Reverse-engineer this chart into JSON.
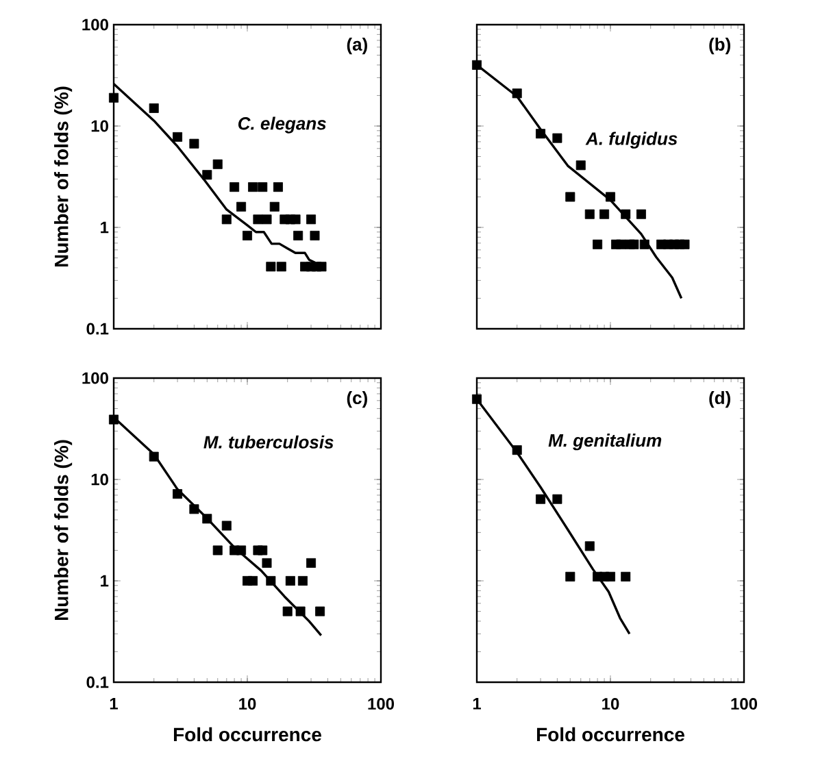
{
  "chart_data": [
    {
      "type": "scatter",
      "log": "xy",
      "ylabel": "Number of folds (%)",
      "annotations": [
        "(a)",
        "C. elegans"
      ],
      "xlim": [
        1,
        100
      ],
      "ylim": [
        0.1,
        100
      ],
      "xticks": [
        1,
        10,
        100
      ],
      "yticks": [
        0.1,
        1,
        10,
        100
      ],
      "tick_labels": "y",
      "series": [
        {
          "marker": "square",
          "color": "#000000",
          "x": [
            1,
            2,
            3,
            4,
            5,
            6,
            7,
            8,
            9,
            10,
            11,
            12,
            13,
            14,
            15,
            16,
            17,
            18,
            19,
            21,
            23,
            24,
            30,
            32,
            27,
            30,
            33,
            36
          ],
          "values": [
            19,
            15,
            7.8,
            6.7,
            3.3,
            4.2,
            1.2,
            2.5,
            1.6,
            0.83,
            2.5,
            1.2,
            2.5,
            1.2,
            0.41,
            1.6,
            2.5,
            0.41,
            1.2,
            1.2,
            1.2,
            0.83,
            1.2,
            0.83,
            0.41,
            0.41,
            0.41,
            0.41
          ]
        },
        {
          "type": "line",
          "marker": "none",
          "color": "#000000",
          "x": [
            1,
            2,
            3,
            4.8,
            7,
            10,
            11.6,
            13.3,
            15.2,
            17.4,
            20,
            22.9,
            27,
            29,
            32,
            35.5
          ],
          "values": [
            26,
            11.3,
            6.3,
            2.9,
            1.5,
            1.05,
            0.9,
            0.9,
            0.69,
            0.69,
            0.62,
            0.56,
            0.56,
            0.48,
            0.45,
            0.41
          ]
        }
      ]
    },
    {
      "type": "scatter",
      "log": "xy",
      "annotations": [
        "(b)",
        "A. fulgidus"
      ],
      "xlim": [
        1,
        100
      ],
      "ylim": [
        0.1,
        100
      ],
      "xticks": [
        1,
        10,
        100
      ],
      "yticks": [
        0.1,
        1,
        10,
        100
      ],
      "tick_labels": false,
      "series": [
        {
          "marker": "square",
          "color": "#000000",
          "x": [
            1,
            2,
            3,
            4,
            5,
            6,
            7,
            8,
            9,
            10,
            11,
            12,
            13,
            14,
            15,
            17,
            18,
            24,
            27,
            30,
            33,
            36
          ],
          "values": [
            40,
            21,
            8.4,
            7.6,
            2.0,
            4.1,
            1.35,
            0.68,
            1.35,
            2.0,
            0.68,
            0.68,
            1.35,
            0.68,
            0.68,
            1.35,
            0.68,
            0.68,
            0.68,
            0.68,
            0.68,
            0.68
          ]
        },
        {
          "type": "line",
          "marker": "none",
          "color": "#000000",
          "x": [
            1,
            2,
            3,
            4.8,
            10,
            17,
            22,
            29,
            34
          ],
          "values": [
            40,
            19.6,
            9.3,
            4.05,
            1.86,
            0.86,
            0.51,
            0.32,
            0.2
          ]
        }
      ]
    },
    {
      "type": "scatter",
      "log": "xy",
      "xlabel": "Fold occurrence",
      "ylabel": "Number of folds (%)",
      "annotations": [
        "(c)",
        "M. tuberculosis"
      ],
      "xlim": [
        1,
        100
      ],
      "ylim": [
        0.1,
        100
      ],
      "xticks": [
        1,
        10,
        100
      ],
      "yticks": [
        0.1,
        1,
        10,
        100
      ],
      "series": [
        {
          "marker": "square",
          "color": "#000000",
          "x": [
            1,
            2,
            3,
            4,
            5,
            6,
            7,
            8,
            9,
            10,
            11,
            12,
            13,
            14,
            15,
            20,
            21,
            25,
            26,
            30,
            35
          ],
          "values": [
            39,
            16.8,
            7.2,
            5.1,
            4.1,
            2.0,
            3.5,
            2.0,
            2.0,
            1.0,
            1.0,
            2.0,
            2.0,
            1.5,
            1.0,
            0.5,
            1.0,
            0.5,
            1.0,
            1.5,
            0.5
          ]
        },
        {
          "type": "line",
          "marker": "none",
          "color": "#000000",
          "x": [
            1,
            2,
            3,
            4.9,
            8.1,
            12.7,
            19,
            29,
            35.7
          ],
          "values": [
            41,
            17.7,
            8,
            4.25,
            2.1,
            1.26,
            0.7,
            0.4,
            0.29
          ]
        }
      ]
    },
    {
      "type": "scatter",
      "log": "xy",
      "xlabel": "Fold occurrence",
      "annotations": [
        "(d)",
        "M. genitalium"
      ],
      "xlim": [
        1,
        100
      ],
      "ylim": [
        0.1,
        100
      ],
      "xticks": [
        1,
        10,
        100
      ],
      "yticks": [
        0.1,
        1,
        10,
        100
      ],
      "tick_labels": "x",
      "series": [
        {
          "marker": "square",
          "color": "#000000",
          "x": [
            1,
            2,
            3,
            4,
            5,
            7,
            8,
            9,
            10,
            13
          ],
          "values": [
            62,
            19.5,
            6.4,
            6.4,
            1.1,
            2.2,
            1.1,
            1.1,
            1.1,
            1.1
          ]
        },
        {
          "type": "line",
          "marker": "none",
          "color": "#000000",
          "x": [
            1,
            2,
            3,
            4.8,
            7.4,
            9.7,
            11.8,
            13.9
          ],
          "values": [
            62,
            18.5,
            8.4,
            3.2,
            1.3,
            0.78,
            0.43,
            0.3
          ]
        }
      ]
    }
  ]
}
